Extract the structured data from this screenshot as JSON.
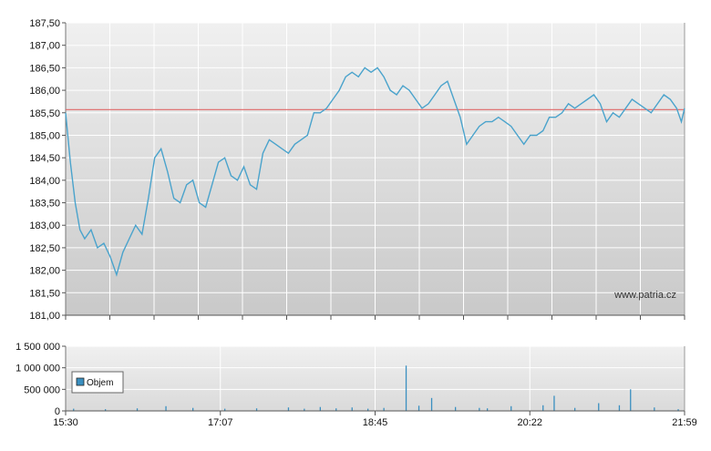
{
  "watermark": "www.patria.cz",
  "colors": {
    "price_line": "#4aa3cc",
    "reference_line": "#e06666",
    "volume_bars": "#3a8fc0",
    "grid": "#ffffff",
    "background_top": "#f0f0f0",
    "background_bottom": "#c9c9c9"
  },
  "chart_data": [
    {
      "type": "line",
      "name": "price",
      "xlim": [
        0,
        389
      ],
      "ylim": [
        181.0,
        187.5
      ],
      "x_ticks": [
        "15:30",
        "17:07",
        "18:45",
        "20:22",
        "21:59"
      ],
      "y_ticks": [
        "181,00",
        "181,50",
        "182,00",
        "182,50",
        "183,00",
        "183,50",
        "184,00",
        "184,50",
        "185,00",
        "185,50",
        "186,00",
        "186,50",
        "187,00",
        "187,50"
      ],
      "reference_line": 185.57,
      "grid": true,
      "x": [
        0,
        3,
        6,
        9,
        12,
        16,
        20,
        24,
        28,
        32,
        36,
        40,
        44,
        48,
        52,
        56,
        60,
        64,
        68,
        72,
        76,
        80,
        84,
        88,
        92,
        96,
        100,
        104,
        108,
        112,
        116,
        120,
        124,
        128,
        132,
        136,
        140,
        144,
        148,
        152,
        156,
        160,
        164,
        168,
        172,
        176,
        180,
        184,
        188,
        192,
        196,
        200,
        204,
        208,
        212,
        216,
        220,
        224,
        228,
        232,
        236,
        240,
        244,
        248,
        252,
        256,
        260,
        264,
        268,
        272,
        276,
        280,
        284,
        288,
        292,
        296,
        300,
        304,
        308,
        312,
        316,
        320,
        324,
        328,
        332,
        336,
        340,
        344,
        348,
        352,
        356,
        360,
        364,
        368,
        372,
        376,
        380,
        384,
        387,
        389
      ],
      "y": [
        185.5,
        184.4,
        183.5,
        182.9,
        182.7,
        182.9,
        182.5,
        182.6,
        182.3,
        181.9,
        182.4,
        182.7,
        183.0,
        182.8,
        183.6,
        184.5,
        184.7,
        184.2,
        183.6,
        183.5,
        183.9,
        184.0,
        183.5,
        183.4,
        183.9,
        184.4,
        184.5,
        184.1,
        184.0,
        184.3,
        183.9,
        183.8,
        184.6,
        184.9,
        184.8,
        184.7,
        184.6,
        184.8,
        184.9,
        185.0,
        185.5,
        185.5,
        185.6,
        185.8,
        186.0,
        186.3,
        186.4,
        186.3,
        186.5,
        186.4,
        186.5,
        186.3,
        186.0,
        185.9,
        186.1,
        186.0,
        185.8,
        185.6,
        185.7,
        185.9,
        186.1,
        186.2,
        185.8,
        185.4,
        184.8,
        185.0,
        185.2,
        185.3,
        185.3,
        185.4,
        185.3,
        185.2,
        185.0,
        184.8,
        185.0,
        185.0,
        185.1,
        185.4,
        185.4,
        185.5,
        185.7,
        185.6,
        185.7,
        185.8,
        185.9,
        185.7,
        185.3,
        185.5,
        185.4,
        185.6,
        185.8,
        185.7,
        185.6,
        185.5,
        185.7,
        185.9,
        185.8,
        185.6,
        185.3,
        185.6
      ]
    },
    {
      "type": "bar",
      "name": "volume",
      "legend": "Objem",
      "ylim": [
        0,
        1500000
      ],
      "y_ticks": [
        "0",
        "500 000",
        "1 000 000",
        "1 500 000"
      ],
      "grid": true,
      "x": [
        5,
        25,
        45,
        63,
        80,
        100,
        120,
        140,
        150,
        160,
        170,
        180,
        190,
        200,
        214,
        222,
        230,
        245,
        260,
        265,
        280,
        300,
        307,
        320,
        335,
        348,
        355,
        370,
        385
      ],
      "values": [
        50000,
        40000,
        60000,
        110000,
        70000,
        50000,
        60000,
        80000,
        50000,
        90000,
        60000,
        80000,
        50000,
        70000,
        1050000,
        120000,
        300000,
        90000,
        70000,
        60000,
        110000,
        130000,
        350000,
        70000,
        180000,
        130000,
        500000,
        80000,
        40000
      ]
    }
  ]
}
